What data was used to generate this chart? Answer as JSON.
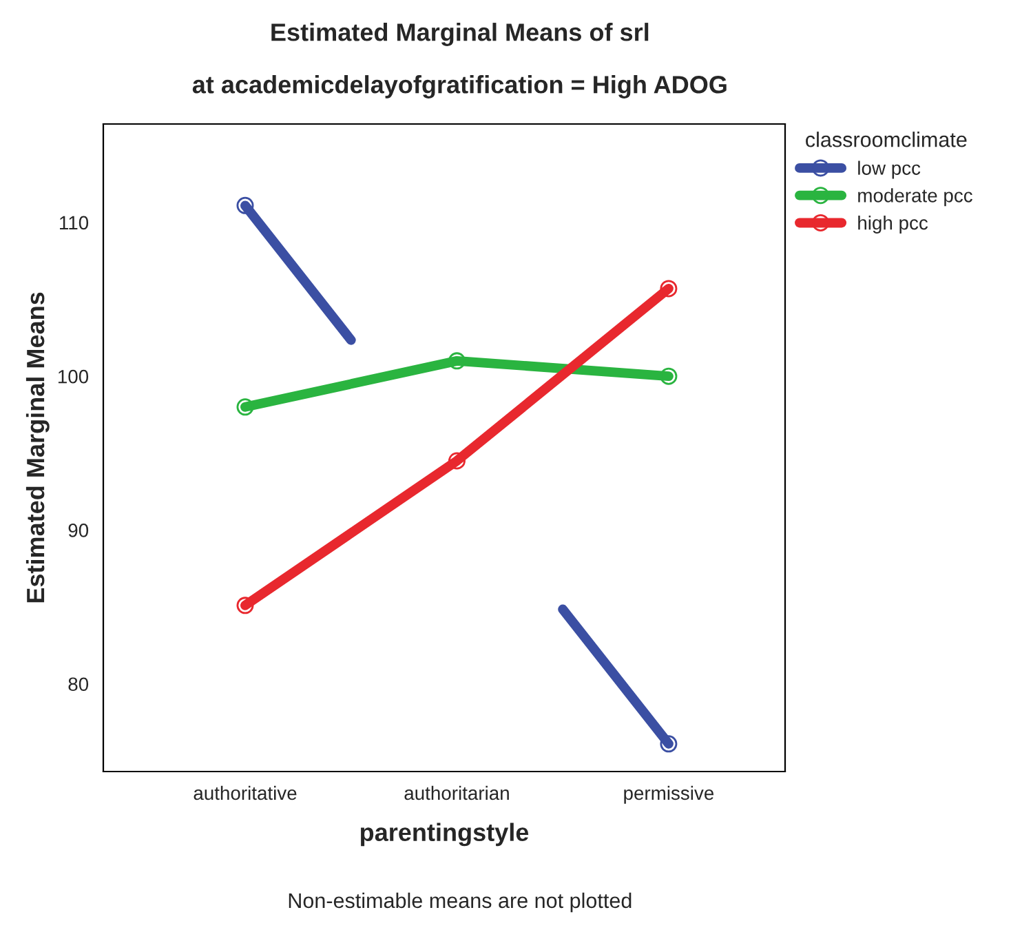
{
  "chart_data": {
    "type": "line",
    "title": "Estimated Marginal Means of srl",
    "subtitle": "at academicdelayofgratification = High ADOG",
    "xlabel": "parentingstyle",
    "ylabel": "Estimated Marginal Means",
    "legend_title": "classroomclimate",
    "categories": [
      "authoritative",
      "authoritarian",
      "permissive"
    ],
    "series": [
      {
        "name": "low pcc",
        "color": "#3b4fa3",
        "values": [
          111.1,
          null,
          76.1
        ]
      },
      {
        "name": "moderate pcc",
        "color": "#2ab440",
        "values": [
          98.0,
          101.0,
          100.0
        ]
      },
      {
        "name": "high pcc",
        "color": "#e8282e",
        "values": [
          85.1,
          94.5,
          105.7
        ]
      }
    ],
    "ylim": [
      74.3,
      116.4
    ],
    "yticks": [
      80,
      90,
      100,
      110
    ],
    "grid": false,
    "legend": "top right",
    "marker": "circle",
    "line_style": "solid",
    "annotations": [
      "Non-estimable means are not plotted"
    ]
  }
}
